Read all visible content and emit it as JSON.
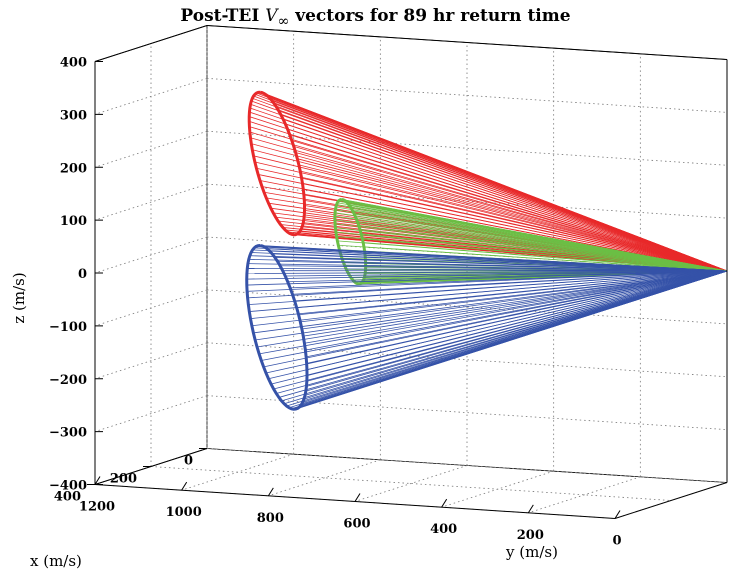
{
  "chart_data": {
    "type": "line3d",
    "title_prefix": "Post-TEI ",
    "title_symbol": "V",
    "title_subscript": "∞",
    "title_suffix": " vectors for 89 hr return time",
    "xlabel": "x (m/s)",
    "ylabel": "y (m/s)",
    "zlabel": "z (m/s)",
    "xlim": [
      0,
      400
    ],
    "ylim": [
      0,
      1200
    ],
    "zlim": [
      -400,
      400
    ],
    "x_ticks": [
      0,
      200,
      400
    ],
    "y_ticks": [
      0,
      200,
      400,
      600,
      800,
      1000,
      1200
    ],
    "z_ticks": [
      -400,
      -300,
      -200,
      -100,
      0,
      100,
      200,
      300,
      400
    ],
    "grid": true,
    "apex": {
      "x": 0,
      "y": 0,
      "z": 0
    },
    "series": [
      {
        "color": "#e8292a",
        "ring_center_y": 1000,
        "ring_center_z": 160,
        "ring_radius": 145,
        "ring_x_tilt": 60,
        "spokes": 72
      },
      {
        "color": "#6bbf45",
        "ring_center_y": 850,
        "ring_center_z": 15,
        "ring_radius": 85,
        "ring_x_tilt": 30,
        "spokes": 60
      },
      {
        "color": "#3552a8",
        "ring_center_y": 1000,
        "ring_center_z": -150,
        "ring_radius": 165,
        "ring_x_tilt": 60,
        "spokes": 72
      }
    ]
  }
}
